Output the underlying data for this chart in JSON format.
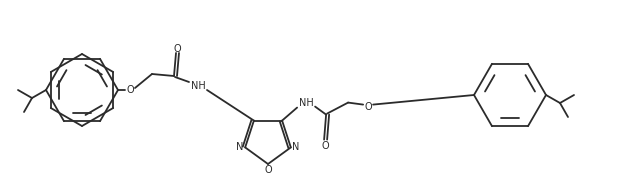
{
  "figsize": [
    6.32,
    1.94
  ],
  "dpi": 100,
  "bg_color": "#ffffff",
  "line_color": "#2b2b2b",
  "line_width": 1.3,
  "font_size": 7.0,
  "xlim": [
    0,
    632
  ],
  "ylim": [
    0,
    194
  ]
}
